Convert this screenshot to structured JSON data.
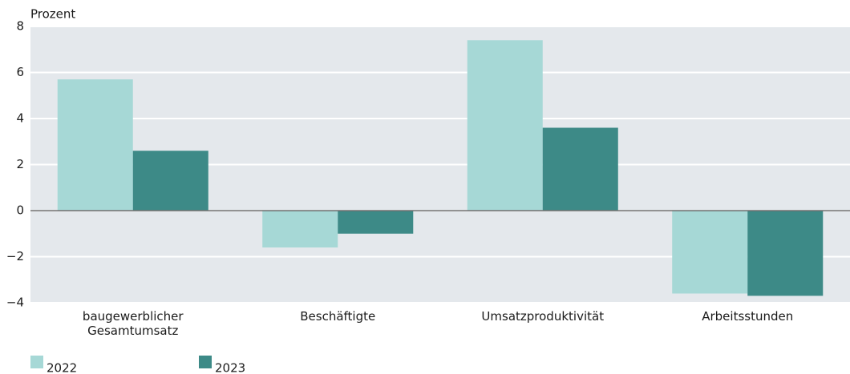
{
  "chart_data": {
    "type": "bar",
    "y_label": "Prozent",
    "categories": [
      "baugewerblicher\nGesamtumsatz",
      "Beschäftigte",
      "Umsatzproduktivität",
      "Arbeitsstunden"
    ],
    "series": [
      {
        "name": "2022",
        "color": "#a6d8d6",
        "values": [
          5.7,
          -1.6,
          7.4,
          -3.6
        ]
      },
      {
        "name": "2023",
        "color": "#3d8a87",
        "values": [
          2.6,
          -1.0,
          3.6,
          -3.7
        ]
      }
    ],
    "ylim": [
      -4,
      8
    ],
    "yticks": [
      {
        "value": -4,
        "label": "−4"
      },
      {
        "value": -2,
        "label": "−2"
      },
      0,
      2,
      4,
      6,
      8
    ],
    "grid": true,
    "legend": "bottom-left"
  }
}
